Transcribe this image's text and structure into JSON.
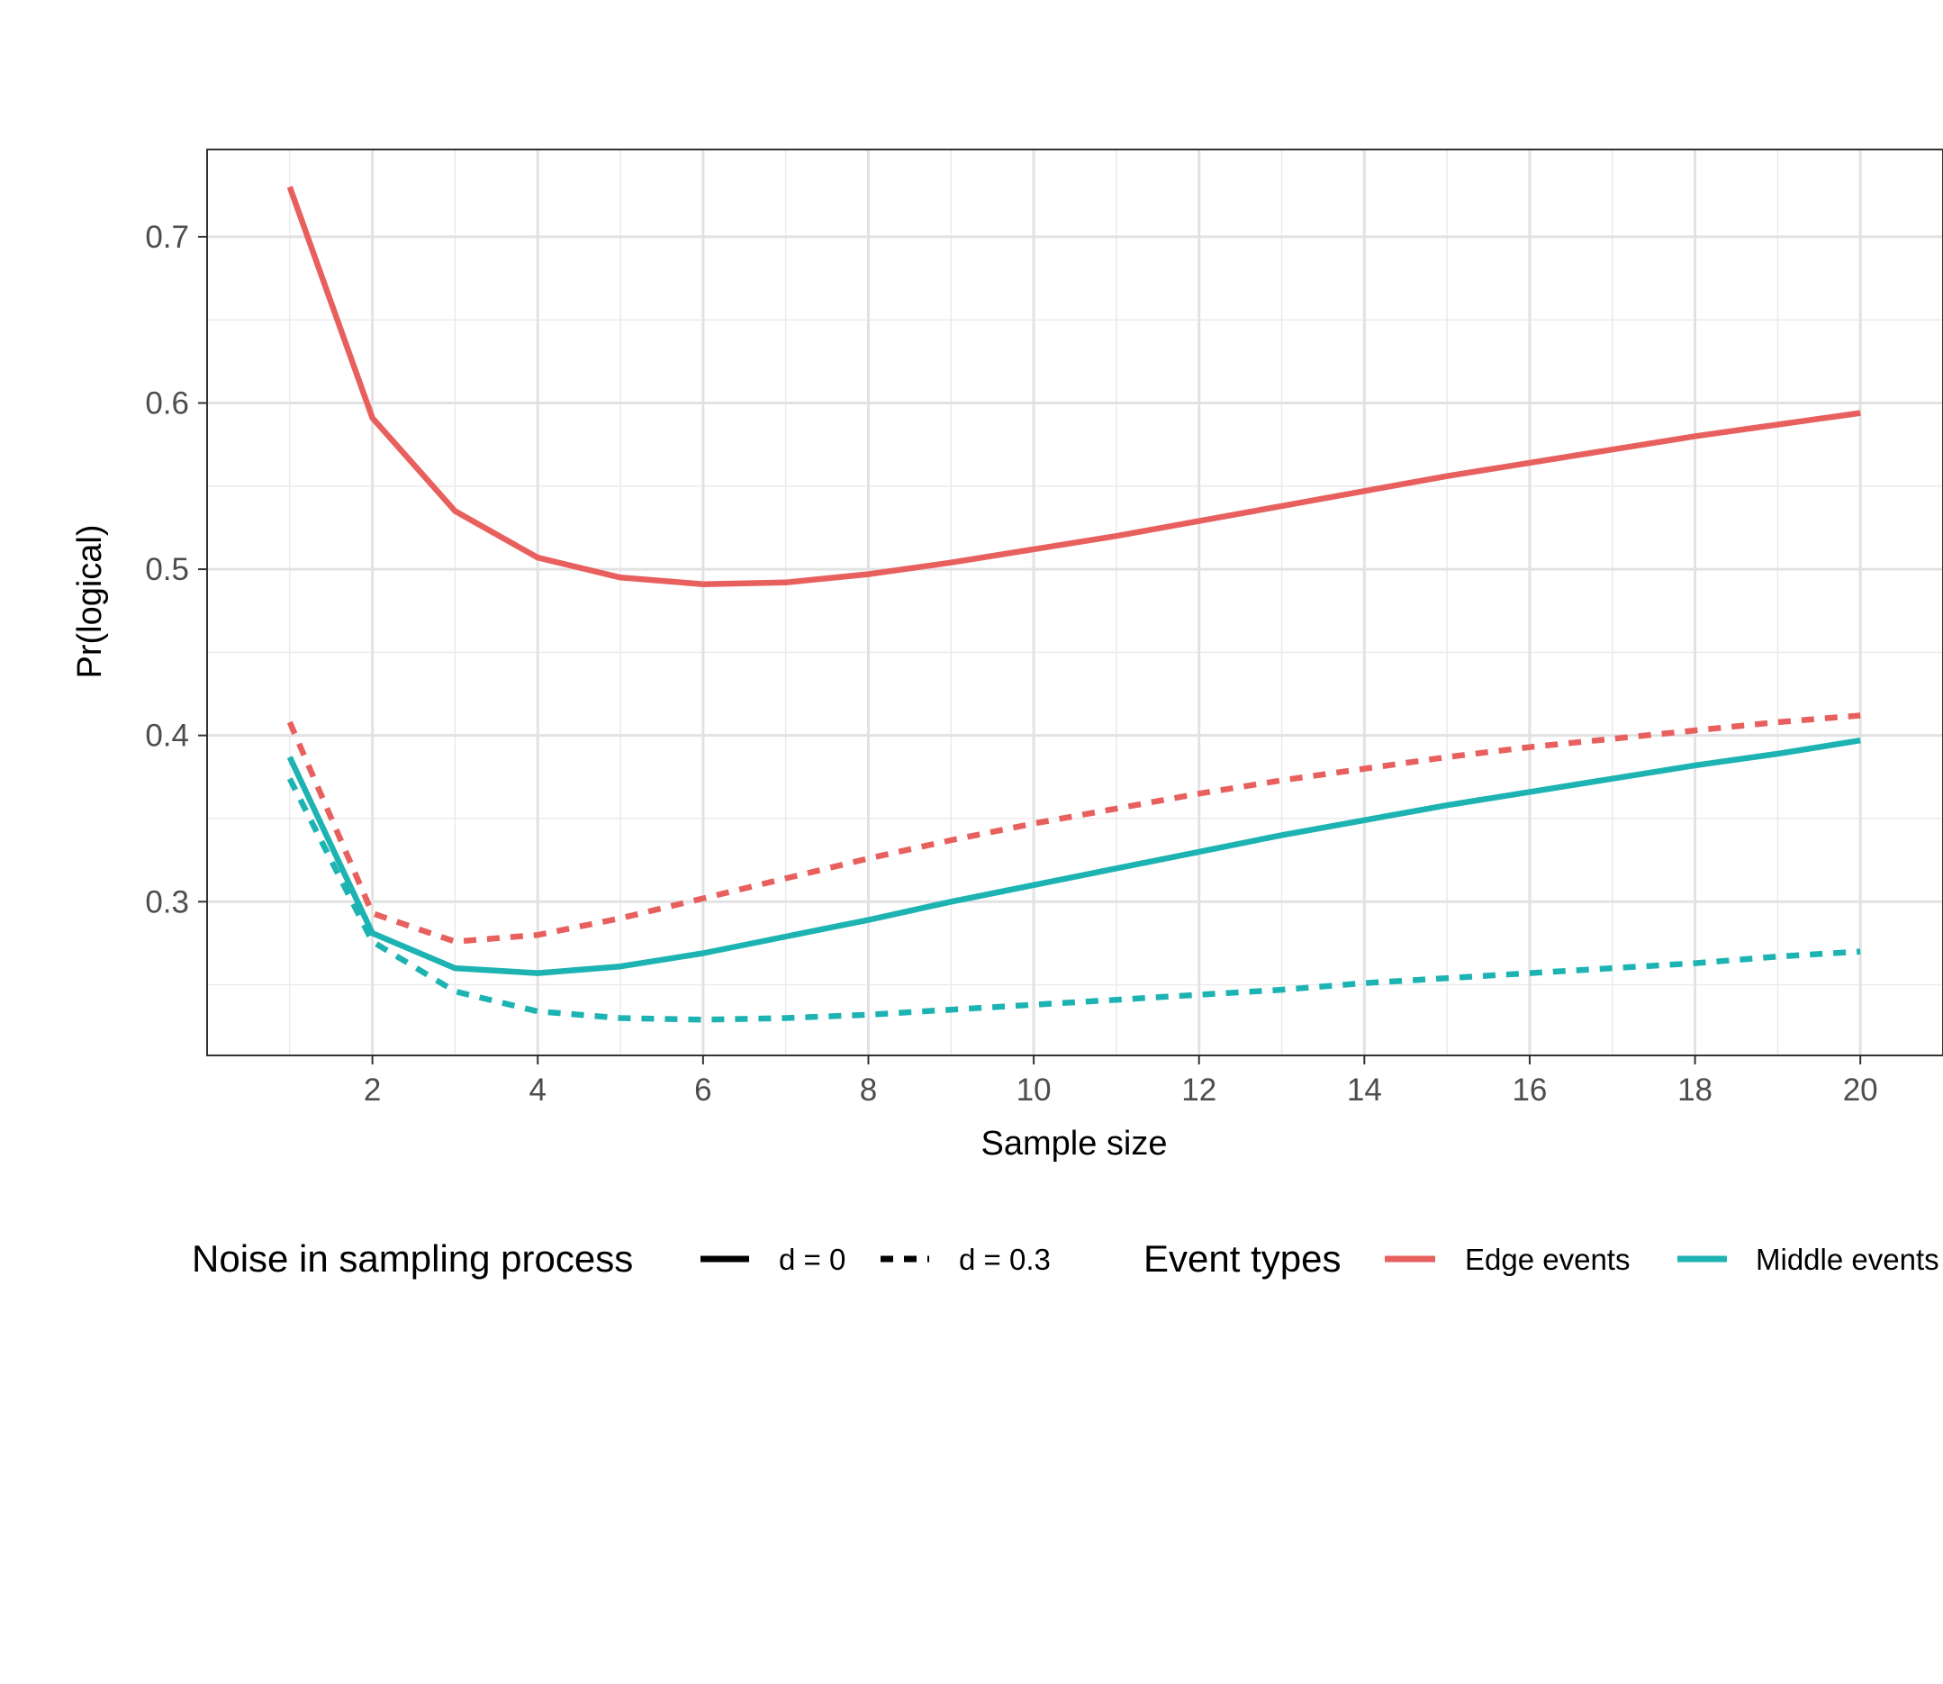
{
  "chart_data": {
    "type": "line",
    "title": "",
    "xlabel": "Sample size",
    "ylabel": "Pr(logical)",
    "x": [
      1,
      2,
      3,
      4,
      5,
      6,
      7,
      8,
      9,
      10,
      11,
      12,
      13,
      14,
      15,
      16,
      17,
      18,
      19,
      20
    ],
    "xlim": [
      0.0,
      21.0
    ],
    "ylim": [
      0.2075,
      0.7525
    ],
    "x_ticks": [
      2,
      4,
      6,
      8,
      10,
      12,
      14,
      16,
      18,
      20
    ],
    "x_tick_labels": [
      "2",
      "4",
      "6",
      "8",
      "10",
      "12",
      "14",
      "16",
      "18",
      "20"
    ],
    "y_ticks": [
      0.3,
      0.4,
      0.5,
      0.6,
      0.7
    ],
    "y_tick_labels": [
      "0.3",
      "0.4",
      "0.5",
      "0.6",
      "0.7"
    ],
    "grid": true,
    "legend_position": "bottom",
    "legends": {
      "linetype": {
        "title": "Noise in sampling process",
        "entries": [
          {
            "label": "d = 0",
            "linetype": "solid"
          },
          {
            "label": "d = 0.3",
            "linetype": "dashed"
          }
        ]
      },
      "color": {
        "title": "Event types",
        "entries": [
          {
            "label": "Edge events",
            "color": "#e8605e"
          },
          {
            "label": "Middle events",
            "color": "#1db3b3"
          }
        ]
      }
    },
    "series": [
      {
        "event_type": "Edge events",
        "noise": "d = 0",
        "color": "#e8605e",
        "linetype": "solid",
        "values": [
          0.73,
          0.591,
          0.535,
          0.507,
          0.495,
          0.491,
          0.492,
          0.497,
          0.504,
          0.512,
          0.52,
          0.529,
          0.538,
          0.547,
          0.556,
          0.564,
          0.572,
          0.58,
          0.587,
          0.594
        ]
      },
      {
        "event_type": "Edge events",
        "noise": "d = 0.3",
        "color": "#e8605e",
        "linetype": "dashed",
        "values": [
          0.408,
          0.293,
          0.276,
          0.28,
          0.29,
          0.302,
          0.314,
          0.326,
          0.337,
          0.347,
          0.356,
          0.365,
          0.373,
          0.38,
          0.387,
          0.393,
          0.398,
          0.403,
          0.408,
          0.412
        ]
      },
      {
        "event_type": "Middle events",
        "noise": "d = 0",
        "color": "#1db3b3",
        "linetype": "solid",
        "values": [
          0.387,
          0.281,
          0.26,
          0.257,
          0.261,
          0.269,
          0.279,
          0.289,
          0.3,
          0.31,
          0.32,
          0.33,
          0.34,
          0.349,
          0.358,
          0.366,
          0.374,
          0.382,
          0.389,
          0.397
        ]
      },
      {
        "event_type": "Middle events",
        "noise": "d = 0.3",
        "color": "#1db3b3",
        "linetype": "dashed",
        "values": [
          0.374,
          0.276,
          0.246,
          0.234,
          0.23,
          0.229,
          0.23,
          0.232,
          0.235,
          0.238,
          0.241,
          0.244,
          0.247,
          0.251,
          0.254,
          0.257,
          0.26,
          0.263,
          0.267,
          0.27
        ]
      }
    ]
  }
}
